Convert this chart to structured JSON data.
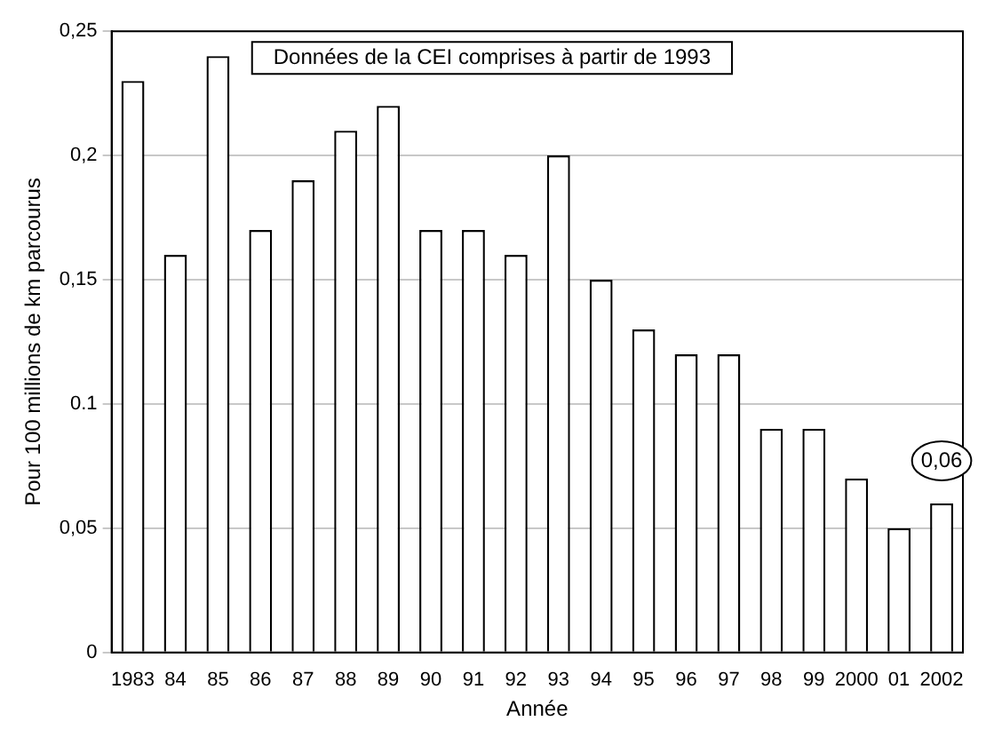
{
  "chart_data": {
    "type": "bar",
    "xlabel": "Année",
    "ylabel": "Pour 100 millions de km parcourus",
    "categories": [
      "1983",
      "84",
      "85",
      "86",
      "87",
      "88",
      "89",
      "90",
      "91",
      "92",
      "93",
      "94",
      "95",
      "96",
      "97",
      "98",
      "99",
      "2000",
      "01",
      "2002"
    ],
    "values": [
      0.23,
      0.16,
      0.24,
      0.17,
      0.19,
      0.21,
      0.22,
      0.17,
      0.17,
      0.16,
      0.2,
      0.15,
      0.13,
      0.12,
      0.12,
      0.09,
      0.09,
      0.07,
      0.05,
      0.06
    ],
    "color": "#ffffff",
    "ylim": [
      0,
      0.25
    ],
    "yticks": [
      {
        "value": 0,
        "label": "0"
      },
      {
        "value": 0.05,
        "label": "0,05"
      },
      {
        "value": 0.1,
        "label": "0.1"
      },
      {
        "value": 0.15,
        "label": "0,15"
      },
      {
        "value": 0.2,
        "label": "0,2"
      },
      {
        "value": 0.25,
        "label": "0,25"
      }
    ],
    "grid": "y",
    "annotations": [
      "Données de la CEI comprises à partir de 1993",
      {
        "text": "0,06",
        "x": "2002",
        "y": 0.06
      }
    ]
  }
}
